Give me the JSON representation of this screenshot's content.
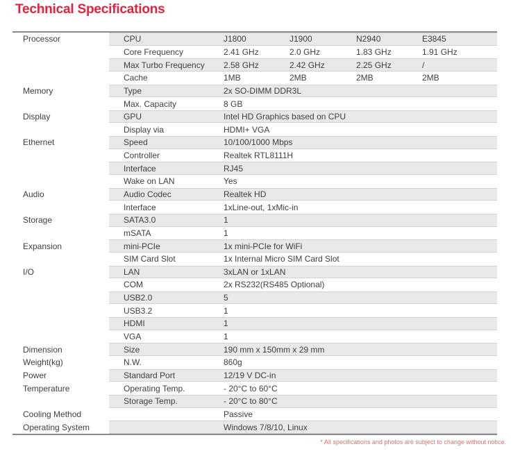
{
  "title": "Technical Specifications",
  "footnote": "* All specifications and photos are subject to change without notice.",
  "colors": {
    "accent": "#e8213a",
    "footnote": "#ef6572",
    "stripe": "#e9e9e9",
    "stripe-edge": "#d2d2d2",
    "rule": "#8a8a8a",
    "text": "#3e3e3e"
  },
  "table": {
    "rows": [
      {
        "category": "Processor",
        "spec": "CPU",
        "values": [
          "J1800",
          "J1900",
          "N2940",
          "E3845"
        ]
      },
      {
        "category": "",
        "spec": "Core Frequency",
        "values": [
          "2.41 GHz",
          "2.0 GHz",
          "1.83 GHz",
          "1.91 GHz"
        ]
      },
      {
        "category": "",
        "spec": "Max Turbo Frequency",
        "values": [
          "2.58 GHz",
          "2.42 GHz",
          "2.25 GHz",
          "/"
        ]
      },
      {
        "category": "",
        "spec": "Cache",
        "values": [
          "1MB",
          "2MB",
          "2MB",
          "2MB"
        ]
      },
      {
        "category": "Memory",
        "spec": "Type",
        "values": [
          "2x SO-DIMM DDR3L"
        ]
      },
      {
        "category": "",
        "spec": "Max. Capacity",
        "values": [
          "8 GB"
        ]
      },
      {
        "category": "Display",
        "spec": "GPU",
        "values": [
          "Intel HD Graphics based on CPU"
        ]
      },
      {
        "category": "",
        "spec": "Display via",
        "values": [
          "HDMI+ VGA"
        ]
      },
      {
        "category": "Ethernet",
        "spec": "Speed",
        "values": [
          "10/100/1000 Mbps"
        ]
      },
      {
        "category": "",
        "spec": "Controller",
        "values": [
          "Realtek RTL8111H"
        ]
      },
      {
        "category": "",
        "spec": "Interface",
        "values": [
          "RJ45"
        ]
      },
      {
        "category": "",
        "spec": "Wake on LAN",
        "values": [
          "Yes"
        ]
      },
      {
        "category": "Audio",
        "spec": "Audio Codec",
        "values": [
          "Realtek HD"
        ]
      },
      {
        "category": "",
        "spec": "Interface",
        "values": [
          "1xLine-out, 1xMic-in"
        ]
      },
      {
        "category": "Storage",
        "spec": "SATA3.0",
        "values": [
          "1"
        ]
      },
      {
        "category": "",
        "spec": "mSATA",
        "values": [
          "1"
        ]
      },
      {
        "category": "Expansion",
        "spec": "mini-PCIe",
        "values": [
          "1x mini-PCIe for WiFi"
        ]
      },
      {
        "category": "",
        "spec": "SIM Card Slot",
        "values": [
          "1x Internal Micro SIM Card Slot"
        ]
      },
      {
        "category": "I/O",
        "spec": "LAN",
        "values": [
          "3xLAN or 1xLAN"
        ]
      },
      {
        "category": "",
        "spec": "COM",
        "values": [
          "2x RS232(RS485 Optional)"
        ]
      },
      {
        "category": "",
        "spec": "USB2.0",
        "values": [
          "5"
        ]
      },
      {
        "category": "",
        "spec": "USB3.2",
        "values": [
          "1"
        ]
      },
      {
        "category": "",
        "spec": "HDMI",
        "values": [
          "1"
        ]
      },
      {
        "category": "",
        "spec": "VGA",
        "values": [
          "1"
        ]
      },
      {
        "category": "Dimension",
        "spec": "Size",
        "values": [
          "190 mm x 150mm x 29 mm"
        ]
      },
      {
        "category": "Weight(kg)",
        "spec": "N.W.",
        "values": [
          "860g"
        ]
      },
      {
        "category": "Power",
        "spec": "Standard Port",
        "values": [
          "12/19 V DC-in"
        ]
      },
      {
        "category": "Temperature",
        "spec": "Operating Temp.",
        "values": [
          "- 20°C to 60°C"
        ]
      },
      {
        "category": "",
        "spec": "Storage Temp.",
        "values": [
          "- 20°C to 80°C"
        ]
      },
      {
        "category": "Cooling Method",
        "spec": "",
        "values": [
          "Passive"
        ]
      },
      {
        "category": "Operating System",
        "spec": "",
        "values": [
          "Windows 7/8/10, Linux"
        ]
      }
    ]
  }
}
